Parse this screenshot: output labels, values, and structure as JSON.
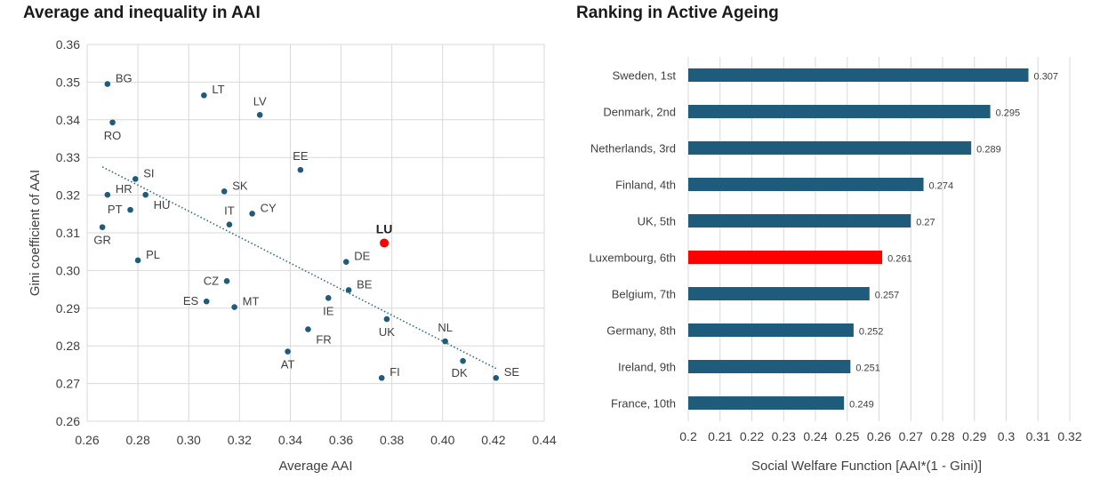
{
  "chart_data": [
    {
      "type": "scatter",
      "title": "Average and inequality in AAI",
      "xlabel": "Average AAI",
      "ylabel": "Gini coefficient of AAI",
      "xlim": [
        0.26,
        0.44
      ],
      "ylim": [
        0.26,
        0.36
      ],
      "x_ticks": [
        "0.26",
        "0.28",
        "0.30",
        "0.32",
        "0.34",
        "0.36",
        "0.38",
        "0.40",
        "0.42",
        "0.44"
      ],
      "y_ticks": [
        "0.26",
        "0.27",
        "0.28",
        "0.29",
        "0.30",
        "0.31",
        "0.32",
        "0.33",
        "0.34",
        "0.35",
        "0.36"
      ],
      "grid": true,
      "trendline": {
        "style": "dotted",
        "x": [
          0.266,
          0.421
        ],
        "y": [
          0.3275,
          0.274
        ]
      },
      "point_color": "#1f5b7a",
      "highlight_color": "#ff0000",
      "points": [
        {
          "label": "BG",
          "x": 0.268,
          "y": 0.3495,
          "anchor": "right"
        },
        {
          "label": "RO",
          "x": 0.27,
          "y": 0.3393,
          "anchor": "below"
        },
        {
          "label": "LT",
          "x": 0.306,
          "y": 0.3465,
          "anchor": "right"
        },
        {
          "label": "LV",
          "x": 0.328,
          "y": 0.3413,
          "anchor": "above"
        },
        {
          "label": "EE",
          "x": 0.344,
          "y": 0.3267,
          "anchor": "above"
        },
        {
          "label": "SI",
          "x": 0.279,
          "y": 0.3243,
          "anchor": "right"
        },
        {
          "label": "HR",
          "x": 0.268,
          "y": 0.3201,
          "anchor": "right"
        },
        {
          "label": "HU",
          "x": 0.283,
          "y": 0.3201,
          "anchor": "below-right"
        },
        {
          "label": "SK",
          "x": 0.314,
          "y": 0.321,
          "anchor": "right"
        },
        {
          "label": "PT",
          "x": 0.277,
          "y": 0.3161,
          "anchor": "left"
        },
        {
          "label": "GR",
          "x": 0.266,
          "y": 0.3115,
          "anchor": "below"
        },
        {
          "label": "IT",
          "x": 0.316,
          "y": 0.3122,
          "anchor": "above"
        },
        {
          "label": "CY",
          "x": 0.325,
          "y": 0.3151,
          "anchor": "right"
        },
        {
          "label": "LU",
          "x": 0.377,
          "y": 0.3073,
          "anchor": "above",
          "highlight": true
        },
        {
          "label": "PL",
          "x": 0.28,
          "y": 0.3027,
          "anchor": "right"
        },
        {
          "label": "DE",
          "x": 0.362,
          "y": 0.3023,
          "anchor": "right"
        },
        {
          "label": "CZ",
          "x": 0.315,
          "y": 0.2972,
          "anchor": "left"
        },
        {
          "label": "BE",
          "x": 0.363,
          "y": 0.2948,
          "anchor": "right"
        },
        {
          "label": "ES",
          "x": 0.307,
          "y": 0.2918,
          "anchor": "left"
        },
        {
          "label": "MT",
          "x": 0.318,
          "y": 0.2903,
          "anchor": "right"
        },
        {
          "label": "IE",
          "x": 0.355,
          "y": 0.2927,
          "anchor": "below"
        },
        {
          "label": "UK",
          "x": 0.378,
          "y": 0.2871,
          "anchor": "below"
        },
        {
          "label": "FR",
          "x": 0.347,
          "y": 0.2844,
          "anchor": "below-right"
        },
        {
          "label": "NL",
          "x": 0.401,
          "y": 0.2812,
          "anchor": "above"
        },
        {
          "label": "AT",
          "x": 0.339,
          "y": 0.2785,
          "anchor": "below"
        },
        {
          "label": "DK",
          "x": 0.408,
          "y": 0.276,
          "anchor": "below-left"
        },
        {
          "label": "SE",
          "x": 0.421,
          "y": 0.2715,
          "anchor": "right"
        },
        {
          "label": "FI",
          "x": 0.376,
          "y": 0.2715,
          "anchor": "right"
        }
      ]
    },
    {
      "type": "bar",
      "orientation": "horizontal",
      "title": "Ranking in Active Ageing",
      "xlabel": "Social Welfare Function [AAI*(1 - Gini)]",
      "xlim": [
        0.2,
        0.32
      ],
      "x_ticks": [
        "0.2",
        "0.21",
        "0.22",
        "0.23",
        "0.24",
        "0.25",
        "0.26",
        "0.27",
        "0.28",
        "0.29",
        "0.3",
        "0.31",
        "0.32"
      ],
      "grid": true,
      "bar_color": "#1f5b7a",
      "highlight_color": "#ff0000",
      "categories": [
        "Sweden, 1st",
        "Denmark, 2nd",
        "Netherlands, 3rd",
        "Finland, 4th",
        "UK, 5th",
        "Luxembourg, 6th",
        "Belgium, 7th",
        "Germany, 8th",
        "Ireland, 9th",
        "France, 10th"
      ],
      "values": [
        0.307,
        0.295,
        0.289,
        0.274,
        0.27,
        0.261,
        0.257,
        0.252,
        0.251,
        0.249
      ],
      "value_labels": [
        "0.307",
        "0.295",
        "0.289",
        "0.274",
        "0.27",
        "0.261",
        "0.257",
        "0.252",
        "0.251",
        "0.249"
      ],
      "highlight": [
        "Luxembourg, 6th"
      ]
    }
  ]
}
